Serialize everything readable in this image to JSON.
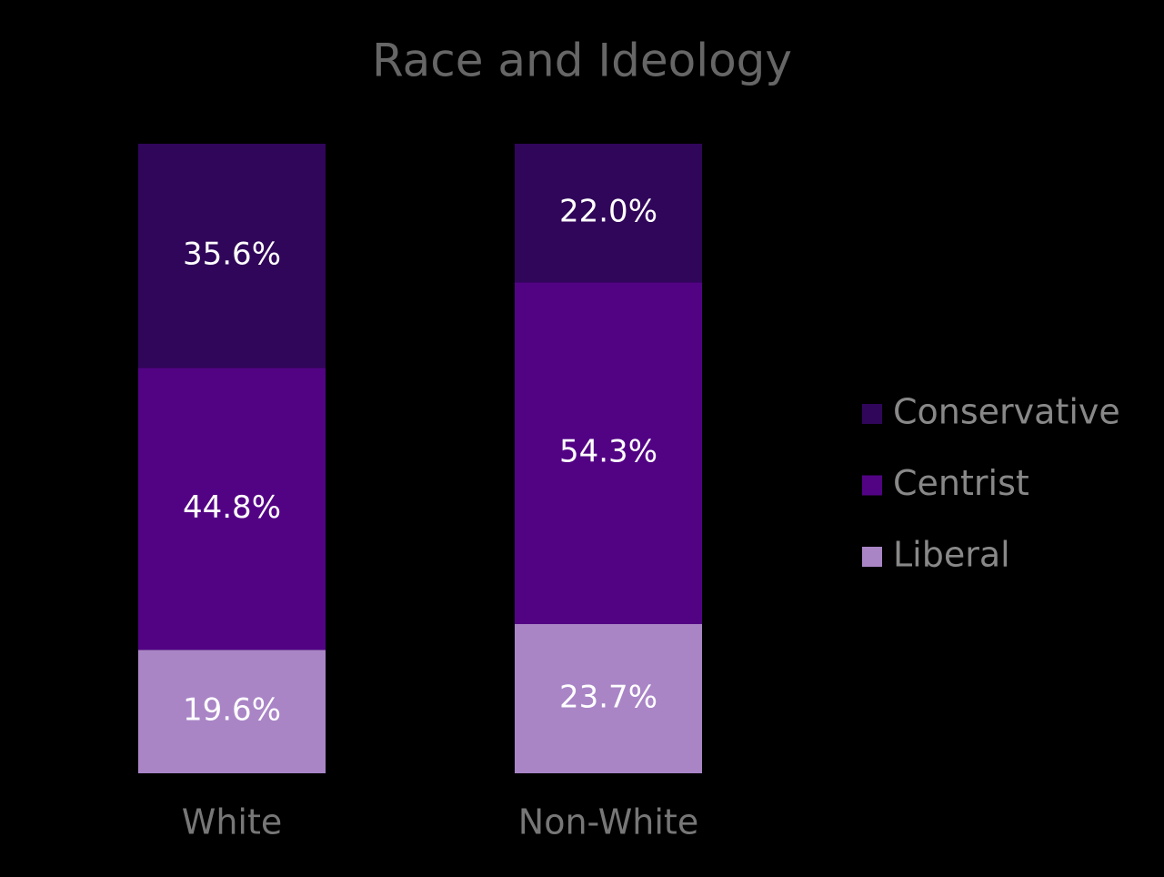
{
  "chart_data": {
    "type": "stacked_bar",
    "title": "Race and Ideology",
    "categories": [
      "White",
      "Non-White"
    ],
    "series": [
      {
        "name": "Conservative",
        "color": "#30065a",
        "values": [
          35.6,
          22.0
        ],
        "value_labels": [
          "35.6%",
          "22.0%"
        ]
      },
      {
        "name": "Centrist",
        "color": "#520384",
        "values": [
          44.8,
          54.3
        ],
        "value_labels": [
          "44.8%",
          "54.3%"
        ]
      },
      {
        "name": "Liberal",
        "color": "#a985c6",
        "values": [
          19.6,
          23.7
        ],
        "value_labels": [
          "19.6%",
          "23.7%"
        ]
      }
    ],
    "legend": "right"
  }
}
